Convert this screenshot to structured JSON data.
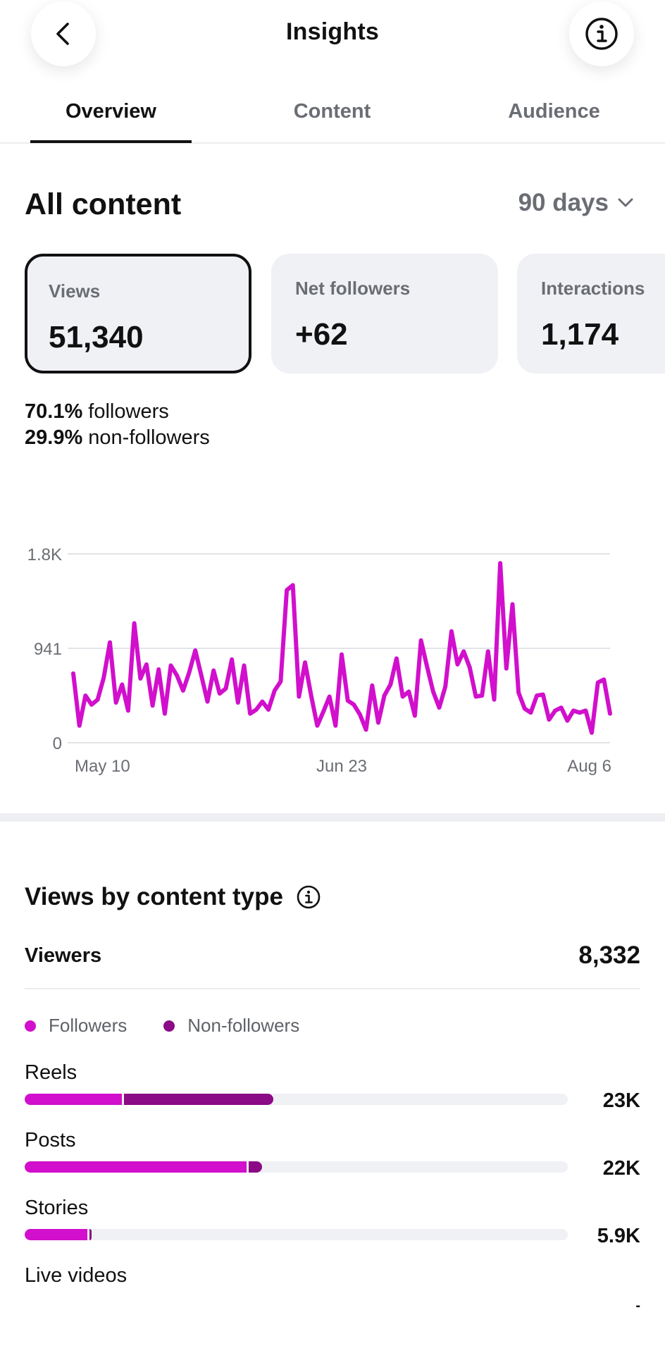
{
  "header": {
    "title": "Insights",
    "back_icon": "chevron-left-icon",
    "info_icon": "info-icon"
  },
  "tabs": [
    {
      "label": "Overview",
      "active": true
    },
    {
      "label": "Content",
      "active": false
    },
    {
      "label": "Audience",
      "active": false
    }
  ],
  "section": {
    "title": "All content",
    "range": "90 days"
  },
  "cards": [
    {
      "label": "Views",
      "value": "51,340",
      "selected": true
    },
    {
      "label": "Net followers",
      "value": "+62",
      "selected": false
    },
    {
      "label": "Interactions",
      "value": "1,174",
      "selected": false
    }
  ],
  "split": {
    "followers_pct": "70.1%",
    "followers_label": "followers",
    "nonfollowers_pct": "29.9%",
    "nonfollowers_label": "non-followers"
  },
  "chart_data": {
    "type": "line",
    "ytick_labels": [
      "0",
      "941",
      "1.8K"
    ],
    "yticks": [
      0,
      941,
      1882
    ],
    "ylim": [
      0,
      1882
    ],
    "xtick_labels": [
      "May 10",
      "Jun 23",
      "Aug 6"
    ],
    "xticks": [
      "2024-05-10",
      "2024-06-23",
      "2024-08-06"
    ],
    "grid": true,
    "color": "#d10fcc",
    "x": [
      "2024-05-10",
      "2024-05-11",
      "2024-05-12",
      "2024-05-13",
      "2024-05-14",
      "2024-05-15",
      "2024-05-16",
      "2024-05-17",
      "2024-05-18",
      "2024-05-19",
      "2024-05-20",
      "2024-05-21",
      "2024-05-22",
      "2024-05-23",
      "2024-05-24",
      "2024-05-25",
      "2024-05-26",
      "2024-05-27",
      "2024-05-28",
      "2024-05-29",
      "2024-05-30",
      "2024-05-31",
      "2024-06-01",
      "2024-06-02",
      "2024-06-03",
      "2024-06-04",
      "2024-06-05",
      "2024-06-06",
      "2024-06-07",
      "2024-06-08",
      "2024-06-09",
      "2024-06-10",
      "2024-06-11",
      "2024-06-12",
      "2024-06-13",
      "2024-06-14",
      "2024-06-15",
      "2024-06-16",
      "2024-06-17",
      "2024-06-18",
      "2024-06-19",
      "2024-06-20",
      "2024-06-21",
      "2024-06-22",
      "2024-06-23",
      "2024-06-24",
      "2024-06-25",
      "2024-06-26",
      "2024-06-27",
      "2024-06-28",
      "2024-06-29",
      "2024-06-30",
      "2024-07-01",
      "2024-07-02",
      "2024-07-03",
      "2024-07-04",
      "2024-07-05",
      "2024-07-06",
      "2024-07-07",
      "2024-07-08",
      "2024-07-09",
      "2024-07-10",
      "2024-07-11",
      "2024-07-12",
      "2024-07-13",
      "2024-07-14",
      "2024-07-15",
      "2024-07-16",
      "2024-07-17",
      "2024-07-18",
      "2024-07-19",
      "2024-07-20",
      "2024-07-21",
      "2024-07-22",
      "2024-07-23",
      "2024-07-24",
      "2024-07-25",
      "2024-07-26",
      "2024-07-27",
      "2024-07-28",
      "2024-07-29",
      "2024-07-30",
      "2024-07-31",
      "2024-08-01",
      "2024-08-02",
      "2024-08-03",
      "2024-08-04",
      "2024-08-05",
      "2024-08-06"
    ],
    "values": [
      690,
      170,
      470,
      380,
      430,
      650,
      1000,
      400,
      580,
      320,
      1190,
      640,
      780,
      370,
      730,
      290,
      770,
      670,
      520,
      700,
      920,
      670,
      410,
      720,
      490,
      540,
      830,
      400,
      770,
      290,
      330,
      410,
      330,
      520,
      610,
      1520,
      1570,
      460,
      800,
      470,
      170,
      310,
      460,
      170,
      880,
      420,
      380,
      280,
      130,
      570,
      200,
      470,
      580,
      840,
      460,
      510,
      270,
      1020,
      760,
      510,
      350,
      560,
      1110,
      780,
      910,
      750,
      460,
      470,
      910,
      430,
      1790,
      740,
      1380,
      500,
      340,
      300,
      470,
      480,
      230,
      320,
      350,
      220,
      320,
      300,
      320,
      100,
      600,
      630,
      290
    ]
  },
  "views_by_type": {
    "title": "Views by content type",
    "info_icon": "info-icon",
    "viewers_label": "Viewers",
    "viewers_value": "8,332",
    "legend": [
      {
        "label": "Followers",
        "color": "#d10fcc"
      },
      {
        "label": "Non-followers",
        "color": "#8b0a85"
      }
    ],
    "items": [
      {
        "label": "Reels",
        "value": "23K",
        "followers": 0.179,
        "nonfollowers": 0.275
      },
      {
        "label": "Posts",
        "value": "22K",
        "followers": 0.408,
        "nonfollowers": 0.025
      },
      {
        "label": "Stories",
        "value": "5.9K",
        "followers": 0.115,
        "nonfollowers": 0.004
      },
      {
        "label": "Live videos",
        "value": "-",
        "followers": 0,
        "nonfollowers": 0
      }
    ]
  }
}
